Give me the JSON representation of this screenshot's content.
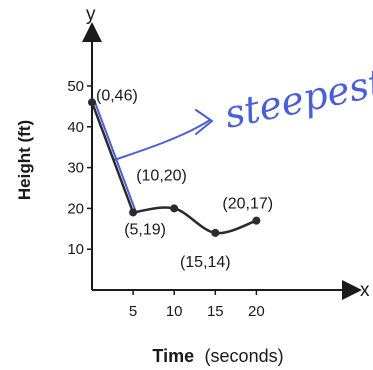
{
  "chart_data": {
    "type": "line",
    "x": [
      0,
      5,
      10,
      15,
      20
    ],
    "y": [
      46,
      19,
      20,
      14,
      17
    ],
    "point_labels": [
      "(0,46)",
      "(5,19)",
      "(10,20)",
      "(15,14)",
      "(20,17)"
    ],
    "x_axis_letter": "x",
    "y_axis_letter": "y",
    "xlabel_main": "Time",
    "xlabel_unit": "(seconds)",
    "ylabel": "Height (ft)",
    "xticks": [
      5,
      10,
      15,
      20
    ],
    "yticks": [
      10,
      20,
      30,
      40,
      50
    ],
    "xlim": [
      0,
      20
    ],
    "ylim": [
      0,
      50
    ],
    "grid": false,
    "annotation_text": "steepest",
    "annotation_color": "#4a5fd4",
    "line_color": "#2b2b2b",
    "highlight_segment": [
      0,
      1
    ]
  }
}
